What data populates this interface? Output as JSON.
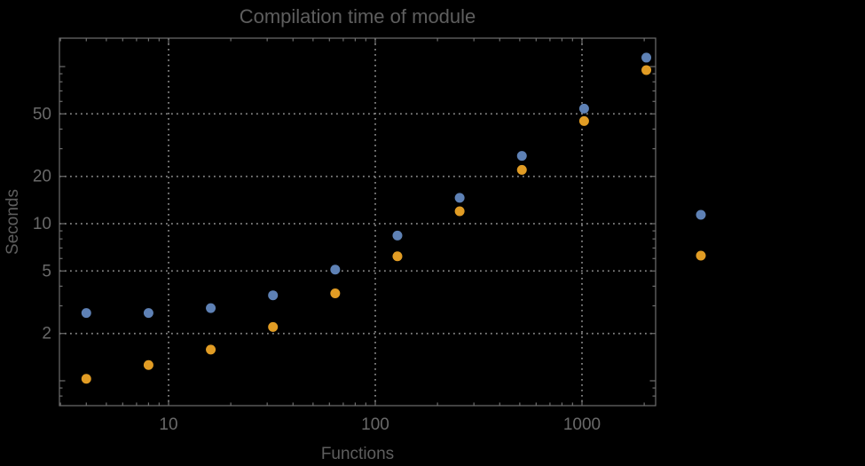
{
  "styles": {
    "background": "#000000",
    "frame_color": "#6e6e6e",
    "grid_color": "#828282",
    "text_color": "#5e5e5e",
    "tick_label_color": "#696969",
    "series_blue": "#5e81b5",
    "series_orange": "#e19c24"
  },
  "chart_data": {
    "type": "scatter",
    "title": "Compilation time of module",
    "xlabel": "Functions",
    "ylabel": "Seconds",
    "x_scale": "log",
    "y_scale": "log",
    "xlim": [
      3,
      2270
    ],
    "ylim": [
      0.7,
      152
    ],
    "grid": {
      "style": "dotted",
      "x_values": [
        10,
        100,
        1000
      ],
      "y_values": [
        2,
        5,
        10,
        20,
        50
      ]
    },
    "x_ticks": [
      {
        "value": 10,
        "label": "10"
      },
      {
        "value": 100,
        "label": "100"
      },
      {
        "value": 1000,
        "label": "1000"
      }
    ],
    "y_ticks": [
      {
        "value": 2,
        "label": "2"
      },
      {
        "value": 5,
        "label": "5"
      },
      {
        "value": 10,
        "label": "10"
      },
      {
        "value": 20,
        "label": "20"
      },
      {
        "value": 50,
        "label": "50"
      }
    ],
    "x_minor_ticks": [
      3,
      4,
      5,
      6,
      7,
      8,
      9,
      20,
      30,
      40,
      50,
      60,
      70,
      80,
      90,
      200,
      300,
      400,
      500,
      600,
      700,
      800,
      900,
      2000
    ],
    "y_minor_ticks": [
      0.7,
      0.8,
      0.9,
      3,
      4,
      6,
      7,
      8,
      9,
      30,
      40,
      60,
      70,
      80,
      90
    ],
    "y_unlabeled_ticks": [
      1,
      100
    ],
    "x": [
      4,
      8,
      16,
      32,
      64,
      128,
      256,
      512,
      1024,
      2048
    ],
    "series": [
      {
        "name": "blue",
        "color": "#5e81b5",
        "values": [
          2.7,
          2.7,
          2.9,
          3.5,
          5.1,
          8.4,
          14.6,
          27,
          54,
          114
        ]
      },
      {
        "name": "orange",
        "color": "#e19c24",
        "values": [
          1.03,
          1.26,
          1.58,
          2.2,
          3.6,
          6.2,
          12,
          22,
          45,
          95
        ]
      }
    ],
    "legend": {
      "position": "right-of-plot",
      "markers_only": true,
      "entries": [
        {
          "name": "blue",
          "marker_color": "#5e81b5",
          "label": ""
        },
        {
          "name": "orange",
          "marker_color": "#e19c24",
          "label": ""
        }
      ]
    }
  }
}
